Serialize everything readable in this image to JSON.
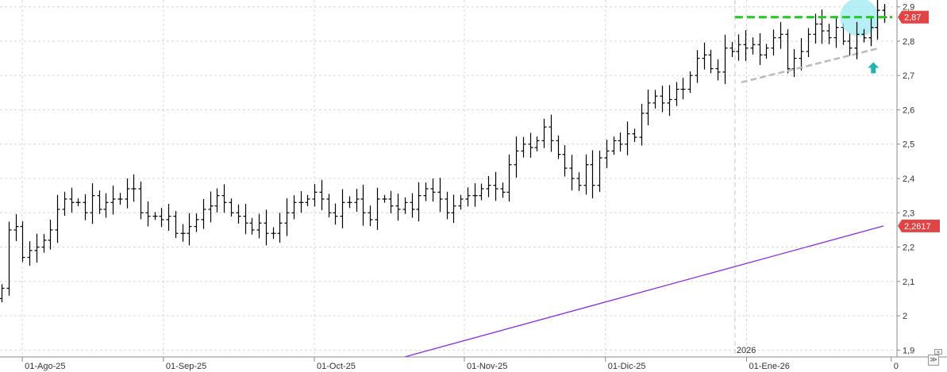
{
  "chart_data": {
    "type": "ohlc",
    "x_tick_labels": [
      "01-Ago-25",
      "01-Sep-25",
      "01-Oct-25",
      "01-Nov-25",
      "01-Dic-25",
      "01-Ene-26",
      "0"
    ],
    "year_marker": "2026",
    "y_tick_labels": [
      "2,9",
      "2,8",
      "2,7",
      "2,6",
      "2,5",
      "2,4",
      "2,3",
      "2,2",
      "2,1",
      "2",
      "1,9"
    ],
    "ylim": [
      1.88,
      2.92
    ],
    "grid": true,
    "price_labels": [
      {
        "text": "2,87",
        "value": 2.87,
        "color": "#e04444"
      },
      {
        "text": "2,2617",
        "value": 2.2617,
        "color": "#e04444"
      }
    ],
    "closes": [
      2.08,
      2.25,
      2.26,
      2.17,
      2.19,
      2.2,
      2.22,
      2.25,
      2.31,
      2.34,
      2.33,
      2.33,
      2.3,
      2.35,
      2.31,
      2.33,
      2.34,
      2.34,
      2.37,
      2.37,
      2.3,
      2.29,
      2.29,
      2.28,
      2.29,
      2.24,
      2.24,
      2.26,
      2.28,
      2.31,
      2.32,
      2.35,
      2.33,
      2.3,
      2.29,
      2.27,
      2.25,
      2.27,
      2.24,
      2.24,
      2.27,
      2.3,
      2.33,
      2.33,
      2.34,
      2.36,
      2.34,
      2.3,
      2.29,
      2.33,
      2.33,
      2.34,
      2.3,
      2.28,
      2.34,
      2.34,
      2.32,
      2.31,
      2.33,
      2.31,
      2.35,
      2.37,
      2.36,
      2.34,
      2.3,
      2.32,
      2.34,
      2.35,
      2.35,
      2.37,
      2.38,
      2.37,
      2.36,
      2.44,
      2.48,
      2.5,
      2.49,
      2.51,
      2.55,
      2.51,
      2.47,
      2.43,
      2.4,
      2.38,
      2.44,
      2.38,
      2.46,
      2.48,
      2.51,
      2.5,
      2.53,
      2.52,
      2.59,
      2.62,
      2.64,
      2.62,
      2.63,
      2.66,
      2.66,
      2.7,
      2.75,
      2.76,
      2.72,
      2.71,
      2.78,
      2.77,
      2.79,
      2.78,
      2.79,
      2.76,
      2.78,
      2.81,
      2.82,
      2.72,
      2.75,
      2.77,
      2.82,
      2.85,
      2.83,
      2.81,
      2.84,
      2.8,
      2.78,
      2.82,
      2.81,
      2.84,
      2.89,
      2.87
    ],
    "series": [
      {
        "name": "",
        "style": "ohlc",
        "color": "#000000"
      },
      {
        "name": "",
        "style": "line",
        "color": "#8a2be2",
        "x": [
          0.453,
          1.0
        ],
        "y": [
          1.88,
          2.2617
        ]
      },
      {
        "name": "",
        "style": "resistance",
        "color": "#22cc22",
        "x": [
          0.823,
          1.0
        ],
        "y": [
          2.87,
          2.87
        ]
      },
      {
        "name": "",
        "style": "support",
        "color": "#bbbbbb",
        "x": [
          0.83,
          0.985
        ],
        "y": [
          2.68,
          2.78
        ]
      }
    ],
    "annotations": [
      {
        "kind": "highlight-circle",
        "color": "#9eeaf2",
        "x": 0.962,
        "y": 2.87
      },
      {
        "kind": "up-arrow",
        "color": "#22b3b3",
        "x": 0.978,
        "y": 2.72
      }
    ],
    "year_separator_x": 0.823
  }
}
